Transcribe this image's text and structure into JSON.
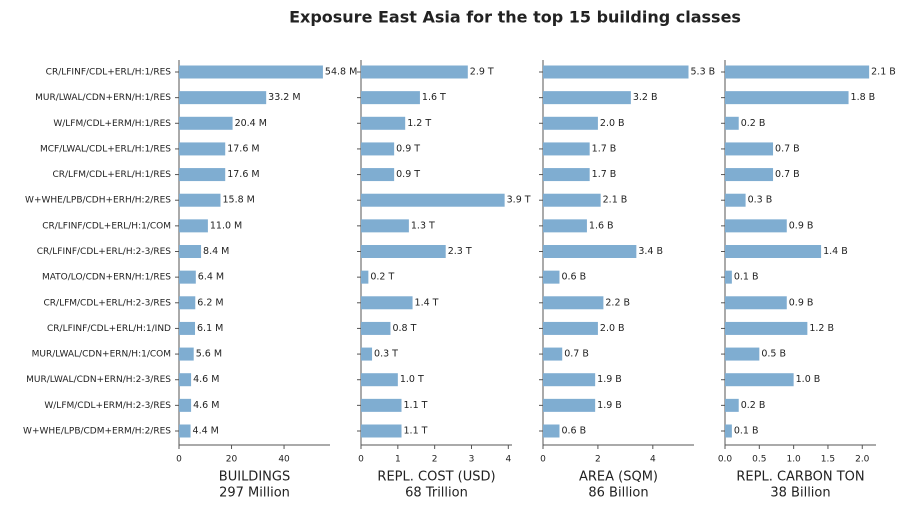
{
  "title": "Exposure East Asia for the top 15 building classes",
  "chart_data": [
    {
      "type": "bar",
      "orientation": "horizontal",
      "color": "#7fadd1",
      "xlabel": "BUILDINGS",
      "total": "297 Million",
      "categories": [
        "CR/LFINF/CDL+ERL/H:1/RES",
        "MUR/LWAL/CDN+ERN/H:1/RES",
        "W/LFM/CDL+ERM/H:1/RES",
        "MCF/LWAL/CDL+ERL/H:1/RES",
        "CR/LFM/CDL+ERL/H:1/RES",
        "W+WHE/LPB/CDH+ERH/H:2/RES",
        "CR/LFINF/CDL+ERL/H:1/COM",
        "CR/LFINF/CDL+ERL/H:2-3/RES",
        "MATO/LO/CDN+ERN/H:1/RES",
        "CR/LFM/CDL+ERL/H:2-3/RES",
        "CR/LFINF/CDL+ERL/H:1/IND",
        "MUR/LWAL/CDN+ERN/H:1/COM",
        "MUR/LWAL/CDN+ERN/H:2-3/RES",
        "W/LFM/CDL+ERM/H:2-3/RES",
        "W+WHE/LPB/CDM+ERM/H:2/RES"
      ],
      "values": [
        54.8,
        33.2,
        20.4,
        17.6,
        17.6,
        15.8,
        11.0,
        8.4,
        6.4,
        6.2,
        6.1,
        5.6,
        4.6,
        4.6,
        4.4
      ],
      "value_labels": [
        "54.8 M",
        "33.2 M",
        "20.4 M",
        "17.6 M",
        "17.6 M",
        "15.8 M",
        "11.0 M",
        "8.4 M",
        "6.4 M",
        "6.2 M",
        "6.1 M",
        "5.6 M",
        "4.6 M",
        "4.6 M",
        "4.4 M"
      ],
      "xlim": [
        0,
        57.5
      ],
      "xticks": [
        0,
        20,
        40
      ]
    },
    {
      "type": "bar",
      "orientation": "horizontal",
      "color": "#7fadd1",
      "xlabel": "REPL. COST (USD)",
      "total": "68 Trillion",
      "values": [
        2.9,
        1.6,
        1.2,
        0.9,
        0.9,
        3.9,
        1.3,
        2.3,
        0.2,
        1.4,
        0.8,
        0.3,
        1.0,
        1.1,
        1.1
      ],
      "value_labels": [
        "2.9 T",
        "1.6 T",
        "1.2 T",
        "0.9 T",
        "0.9 T",
        "3.9 T",
        "1.3 T",
        "2.3 T",
        "0.2 T",
        "1.4 T",
        "0.8 T",
        "0.3 T",
        "1.0 T",
        "1.1 T",
        "1.1 T"
      ],
      "xlim": [
        0,
        4.1
      ],
      "xticks": [
        0,
        1,
        2,
        3,
        4
      ]
    },
    {
      "type": "bar",
      "orientation": "horizontal",
      "color": "#7fadd1",
      "xlabel": "AREA (SQM)",
      "total": "86 Billion",
      "values": [
        5.3,
        3.2,
        2.0,
        1.7,
        1.7,
        2.1,
        1.6,
        3.4,
        0.6,
        2.2,
        2.0,
        0.7,
        1.9,
        1.9,
        0.6
      ],
      "value_labels": [
        "5.3 B",
        "3.2 B",
        "2.0 B",
        "1.7 B",
        "1.7 B",
        "2.1 B",
        "1.6 B",
        "3.4 B",
        "0.6 B",
        "2.2 B",
        "2.0 B",
        "0.7 B",
        "1.9 B",
        "1.9 B",
        "0.6 B"
      ],
      "xlim": [
        0,
        5.5
      ],
      "xticks": [
        0,
        2,
        4
      ]
    },
    {
      "type": "bar",
      "orientation": "horizontal",
      "color": "#7fadd1",
      "xlabel": "REPL. CARBON TON",
      "total": "38 Billion",
      "values": [
        2.1,
        1.8,
        0.2,
        0.7,
        0.7,
        0.3,
        0.9,
        1.4,
        0.1,
        0.9,
        1.2,
        0.5,
        1.0,
        0.2,
        0.1
      ],
      "value_labels": [
        "2.1 B",
        "1.8 B",
        "0.2 B",
        "0.7 B",
        "0.7 B",
        "0.3 B",
        "0.9 B",
        "1.4 B",
        "0.1 B",
        "0.9 B",
        "1.2 B",
        "0.5 B",
        "1.0 B",
        "0.2 B",
        "0.1 B"
      ],
      "xlim": [
        0,
        2.2
      ],
      "xticks": [
        {
          "value": 0,
          "label": "0.0"
        },
        0.5,
        {
          "value": 1,
          "label": "1.0"
        },
        1.5,
        {
          "value": 2,
          "label": "2.0"
        }
      ]
    }
  ]
}
